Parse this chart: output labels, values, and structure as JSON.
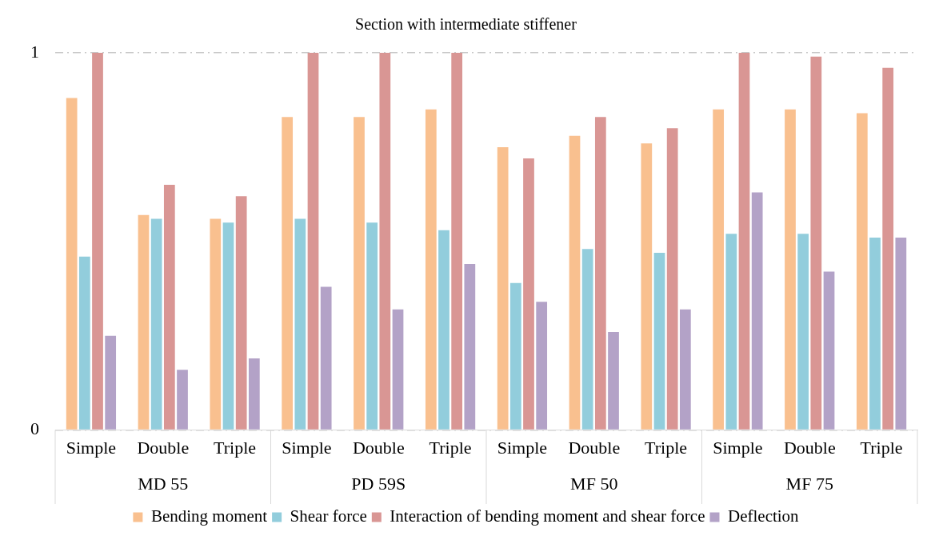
{
  "chart_data": {
    "type": "bar",
    "title": "Section with intermediate stiffener",
    "categories": [
      "Simple",
      "Double",
      "Triple",
      "Simple",
      "Double",
      "Triple",
      "Simple",
      "Double",
      "Triple",
      "Simple",
      "Double",
      "Triple"
    ],
    "annotations": [
      "MD 55",
      "PD 59S",
      "MF 50",
      "MF 75"
    ],
    "series": [
      {
        "name": "Bending moment",
        "color": "#f9c08f",
        "values": [
          0.88,
          0.57,
          0.56,
          0.83,
          0.83,
          0.85,
          0.75,
          0.78,
          0.76,
          0.85,
          0.85,
          0.84
        ]
      },
      {
        "name": "Shear force",
        "color": "#92cddc",
        "values": [
          0.46,
          0.56,
          0.55,
          0.56,
          0.55,
          0.53,
          0.39,
          0.48,
          0.47,
          0.52,
          0.52,
          0.51
        ]
      },
      {
        "name": "Interaction of bending moment and shear force",
        "color": "#d99694",
        "values": [
          1,
          0.65,
          0.62,
          1,
          1,
          1,
          0.72,
          0.83,
          0.8,
          1,
          0.99,
          0.96
        ]
      },
      {
        "name": "Deflection",
        "color": "#b3a2c7",
        "values": [
          0.25,
          0.16,
          0.19,
          0.38,
          0.32,
          0.44,
          0.34,
          0.26,
          0.32,
          0.63,
          0.42,
          0.51
        ]
      }
    ],
    "ylim": [
      0,
      1
    ],
    "yticks": [
      0,
      1
    ],
    "grid": "y",
    "legend": "bottom"
  }
}
